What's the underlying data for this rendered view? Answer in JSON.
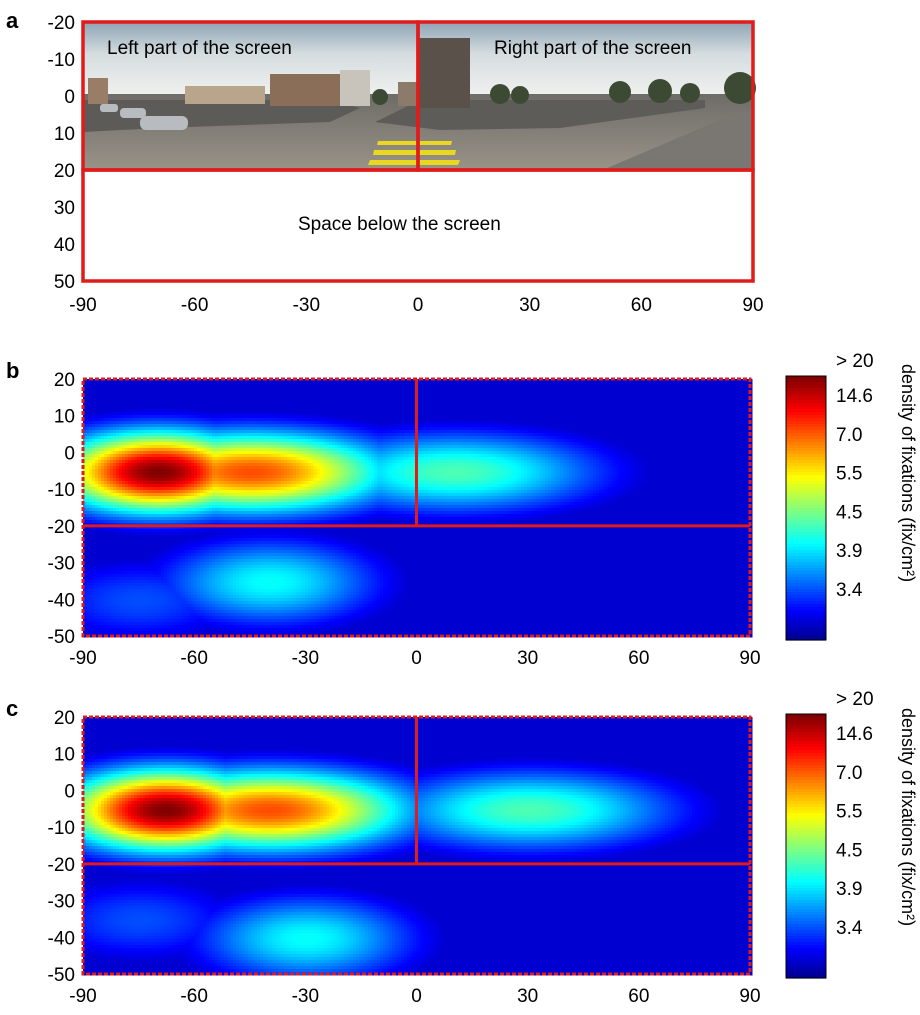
{
  "chart_data": [
    {
      "panel": "a",
      "type": "other",
      "xlim": [
        -90,
        90
      ],
      "ylim": [
        50,
        -20
      ],
      "x_ticks": [
        "-90",
        "-60",
        "-30",
        "0",
        "30",
        "60",
        "90"
      ],
      "y_ticks": [
        "-20",
        "-10",
        "0",
        "10",
        "20",
        "30",
        "40",
        "50"
      ],
      "regions": [
        {
          "label": "Left part of the screen",
          "x": [
            -90,
            0
          ],
          "y": [
            -20,
            20
          ]
        },
        {
          "label": "Right part of the screen",
          "x": [
            0,
            90
          ],
          "y": [
            -20,
            20
          ]
        },
        {
          "label": "Space below the screen",
          "x": [
            -90,
            90
          ],
          "y": [
            20,
            50
          ]
        }
      ],
      "grid": false
    },
    {
      "panel": "b",
      "type": "heatmap",
      "xlim": [
        -90,
        90
      ],
      "ylim": [
        -50,
        20
      ],
      "x_ticks": [
        "-90",
        "-60",
        "-30",
        "0",
        "30",
        "60",
        "90"
      ],
      "y_ticks": [
        "20",
        "10",
        "0",
        "-10",
        "-20",
        "-30",
        "-40",
        "-50"
      ],
      "colorbar": {
        "label": "density of fixations  (fix/cm²)",
        "ticks": [
          "> 20",
          "14.6",
          "7.0",
          "5.5",
          "4.5",
          "3.9",
          "3.4"
        ]
      },
      "hotspots": [
        {
          "x": -70,
          "y": -5,
          "level": "max"
        },
        {
          "x": -45,
          "y": -5,
          "level": "high"
        },
        {
          "x": 10,
          "y": -5,
          "level": "medium"
        },
        {
          "x": -40,
          "y": -35,
          "level": "low"
        },
        {
          "x": -75,
          "y": -40,
          "level": "min"
        }
      ],
      "grid": false
    },
    {
      "panel": "c",
      "type": "heatmap",
      "xlim": [
        -90,
        90
      ],
      "ylim": [
        -50,
        20
      ],
      "x_ticks": [
        "-90",
        "-60",
        "-30",
        "0",
        "30",
        "60",
        "90"
      ],
      "y_ticks": [
        "20",
        "10",
        "0",
        "-10",
        "-20",
        "-30",
        "-40",
        "-50"
      ],
      "colorbar": {
        "label": "density of fixations  (fix/cm²)",
        "ticks": [
          "> 20",
          "14.6",
          "7.0",
          "5.5",
          "4.5",
          "3.9",
          "3.4"
        ]
      },
      "hotspots": [
        {
          "x": -68,
          "y": -5,
          "level": "max"
        },
        {
          "x": -40,
          "y": -5,
          "level": "high"
        },
        {
          "x": 30,
          "y": -5,
          "level": "medium"
        },
        {
          "x": -30,
          "y": -40,
          "level": "low"
        },
        {
          "x": -75,
          "y": -35,
          "level": "min"
        }
      ],
      "grid": false
    }
  ],
  "labels": {
    "panel_a": "a",
    "panel_b": "b",
    "panel_c": "c",
    "left_region": "Left part of the screen",
    "right_region": "Right part of the screen",
    "below_region": "Space below the screen",
    "colorbar_label_b": "density of fixations  (fix/cm²)",
    "colorbar_label_c": "density of fixations  (fix/cm²)"
  },
  "colors": {
    "region_outline": "#e01b1b",
    "heat_low": "#00008f",
    "heat_high": "#7f0000"
  }
}
